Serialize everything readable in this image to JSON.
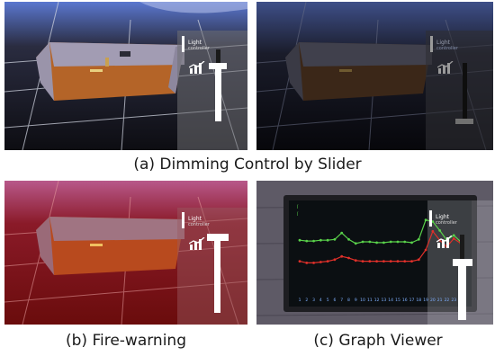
{
  "captions": {
    "a": "(a) Dimming Control by Slider",
    "b": "(b) Fire-warning",
    "c": "(c) Graph Viewer"
  },
  "controller": {
    "title": "Light",
    "subtitle": "controller",
    "icon": "bar-chart-icon"
  },
  "graph_panel": {
    "legend_top": "ĺ",
    "legend_bottom": "ĺ",
    "x_ticks": [
      "1",
      "2",
      "3",
      "4",
      "5",
      "6",
      "7",
      "8",
      "9",
      "10",
      "11",
      "12",
      "13",
      "14",
      "15",
      "16",
      "17",
      "18",
      "19",
      "20",
      "21",
      "22",
      "23",
      "24"
    ]
  },
  "colors": {
    "sky_top": "#4a6cc9",
    "floor_wood": "#a55c25",
    "wall_brick": "#8e88a0",
    "fire_tint": "#b01818",
    "graph_green": "#59d14a",
    "graph_red": "#e0302a",
    "frame_dark": "#2a2a2a"
  },
  "chart_data": {
    "type": "line",
    "x": [
      1,
      2,
      3,
      4,
      5,
      6,
      7,
      8,
      9,
      10,
      11,
      12,
      13,
      14,
      15,
      16,
      17,
      18,
      19,
      20,
      21,
      22,
      23,
      24
    ],
    "series": [
      {
        "values": [
          62,
          61,
          61,
          62,
          62,
          63,
          71,
          63,
          58,
          60,
          60,
          59,
          59,
          60,
          60,
          60,
          59,
          63,
          87,
          85,
          74,
          62,
          68,
          60
        ]
      },
      {
        "values": [
          36,
          34,
          34,
          35,
          36,
          38,
          42,
          40,
          37,
          36,
          36,
          36,
          36,
          36,
          36,
          36,
          36,
          38,
          50,
          73,
          62,
          54,
          64,
          58
        ]
      }
    ],
    "ylim": [
      0,
      100
    ]
  }
}
